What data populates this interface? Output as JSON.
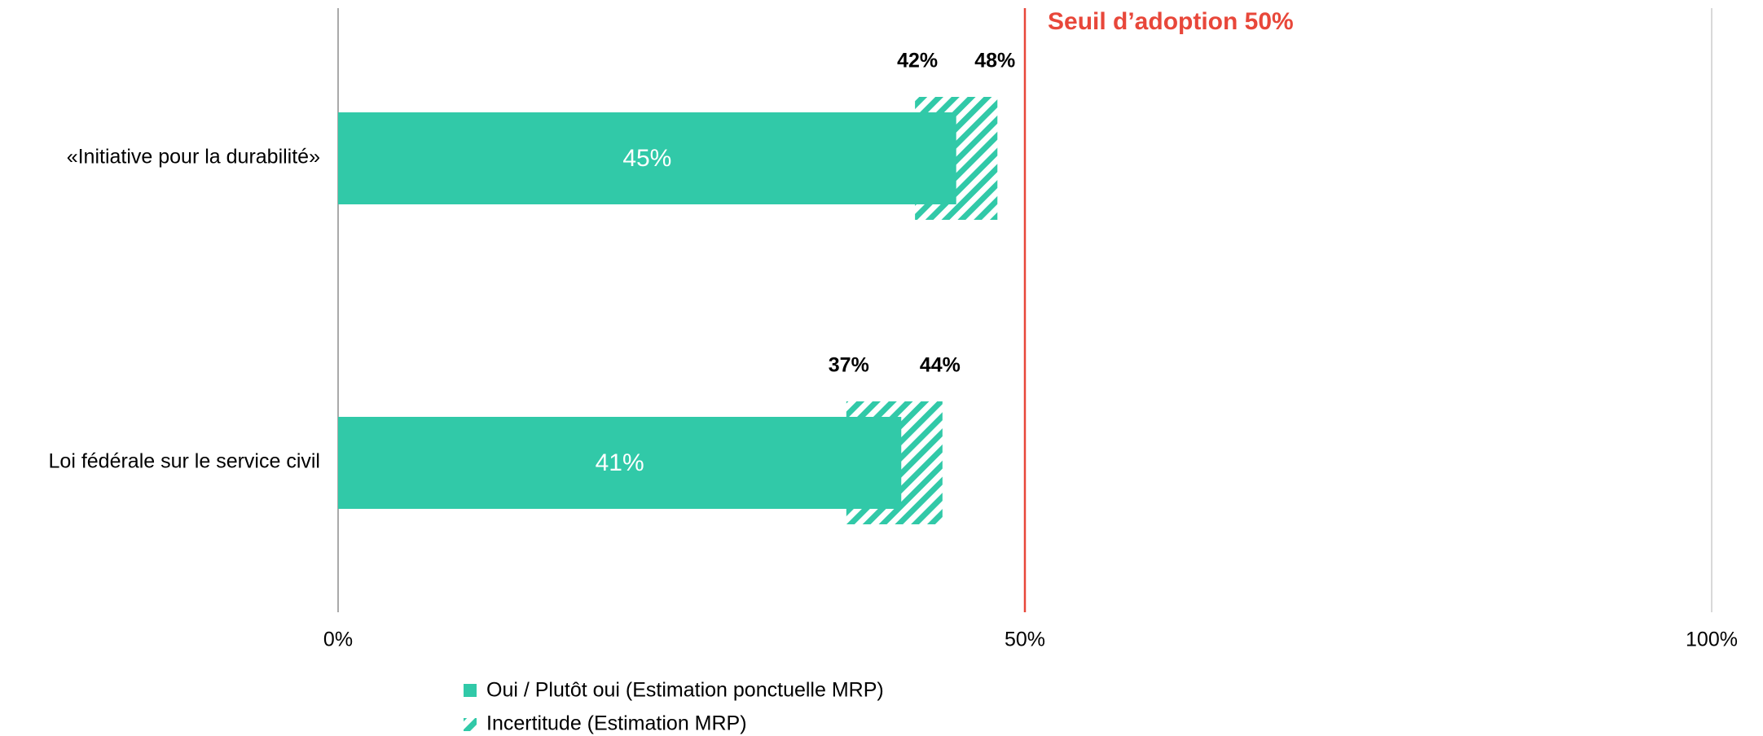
{
  "chart_data": {
    "type": "range_bar",
    "categories": [
      "«Initiative pour la durabilité»",
      "Loi fédérale sur le service civil"
    ],
    "series": [
      {
        "name": "Oui / Plutôt oui (Estimation ponctuelle MRP)",
        "color": "#31c9a8",
        "values": [
          45,
          41
        ],
        "value_labels": [
          "45%",
          "41%"
        ]
      },
      {
        "name": "Incertitude (Estimation MRP)",
        "color": "#31c9a8",
        "low": [
          42,
          37
        ],
        "high": [
          48,
          44
        ],
        "low_labels": [
          "42%",
          "37%"
        ],
        "high_labels": [
          "48%",
          "44%"
        ]
      }
    ],
    "threshold": {
      "value": 50,
      "label": "Seuil d’adoption 50%",
      "color": "#e8473a"
    },
    "xlim": [
      0,
      100
    ],
    "xticks": [
      {
        "value": 0,
        "label": "0%"
      },
      {
        "value": 50,
        "label": "50%"
      },
      {
        "value": 100,
        "label": "100%"
      }
    ],
    "grid": true
  }
}
